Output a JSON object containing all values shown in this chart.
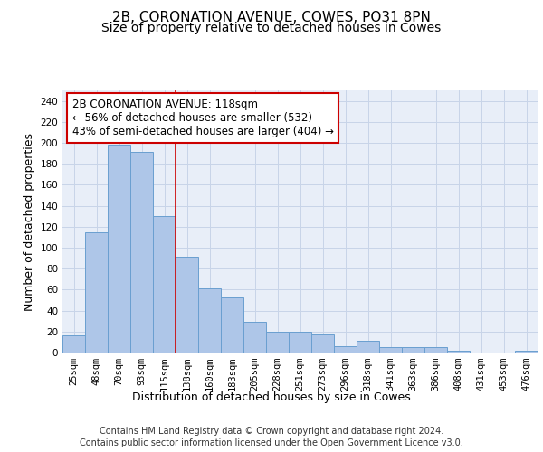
{
  "title": "2B, CORONATION AVENUE, COWES, PO31 8PN",
  "subtitle": "Size of property relative to detached houses in Cowes",
  "xlabel": "Distribution of detached houses by size in Cowes",
  "ylabel": "Number of detached properties",
  "categories": [
    "25sqm",
    "48sqm",
    "70sqm",
    "93sqm",
    "115sqm",
    "138sqm",
    "160sqm",
    "183sqm",
    "205sqm",
    "228sqm",
    "251sqm",
    "273sqm",
    "296sqm",
    "318sqm",
    "341sqm",
    "363sqm",
    "386sqm",
    "408sqm",
    "431sqm",
    "453sqm",
    "476sqm"
  ],
  "values": [
    16,
    115,
    198,
    191,
    130,
    91,
    61,
    53,
    29,
    20,
    20,
    17,
    6,
    11,
    5,
    5,
    5,
    2,
    0,
    0,
    2
  ],
  "bar_color": "#aec6e8",
  "bar_edge_color": "#6a9fd0",
  "vline_x_index": 4,
  "vline_color": "#cc0000",
  "annotation_text": "2B CORONATION AVENUE: 118sqm\n← 56% of detached houses are smaller (532)\n43% of semi-detached houses are larger (404) →",
  "annotation_box_color": "#ffffff",
  "annotation_box_edge": "#cc0000",
  "ylim": [
    0,
    250
  ],
  "yticks": [
    0,
    20,
    40,
    60,
    80,
    100,
    120,
    140,
    160,
    180,
    200,
    220,
    240
  ],
  "footer_line1": "Contains HM Land Registry data © Crown copyright and database right 2024.",
  "footer_line2": "Contains public sector information licensed under the Open Government Licence v3.0.",
  "grid_color": "#c8d4e8",
  "background_color": "#e8eef8",
  "title_fontsize": 11,
  "subtitle_fontsize": 10,
  "xlabel_fontsize": 9,
  "ylabel_fontsize": 9,
  "tick_fontsize": 7.5,
  "annotation_fontsize": 8.5,
  "footer_fontsize": 7
}
